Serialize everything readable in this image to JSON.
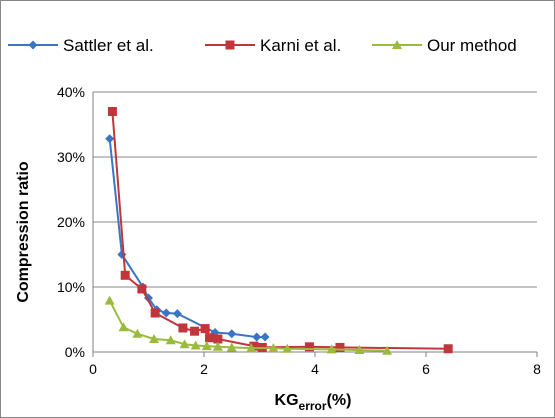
{
  "chart_data": {
    "type": "line",
    "xlabel_main": "KG",
    "xlabel_sub": "error",
    "xlabel_suffix": "(%)",
    "ylabel": "Compression ratio",
    "xlim": [
      0,
      8
    ],
    "ylim": [
      0,
      40
    ],
    "x_ticks": [
      "0",
      "2",
      "4",
      "6",
      "8"
    ],
    "y_ticks": [
      "0%",
      "10%",
      "20%",
      "30%",
      "40%"
    ],
    "grid": "horizontal",
    "legend_position": "top",
    "series": [
      {
        "name": "Sattler et al.",
        "color": "#3a75c4",
        "marker": "diamond",
        "points": [
          [
            0.3,
            32.8
          ],
          [
            0.52,
            15.0
          ],
          [
            0.9,
            10.0
          ],
          [
            1.0,
            8.3
          ],
          [
            1.15,
            6.5
          ],
          [
            1.32,
            6.0
          ],
          [
            1.52,
            5.9
          ],
          [
            2.2,
            3.0
          ],
          [
            2.5,
            2.8
          ],
          [
            2.95,
            2.3
          ],
          [
            3.1,
            2.3
          ]
        ]
      },
      {
        "name": "Karni et al.",
        "color": "#c0363a",
        "marker": "square",
        "points": [
          [
            0.35,
            37.0
          ],
          [
            0.58,
            11.8
          ],
          [
            0.88,
            9.7
          ],
          [
            1.12,
            6.0
          ],
          [
            1.62,
            3.7
          ],
          [
            1.83,
            3.2
          ],
          [
            2.02,
            3.6
          ],
          [
            2.1,
            2.2
          ],
          [
            2.25,
            2.0
          ],
          [
            2.9,
            0.9
          ],
          [
            3.05,
            0.7
          ],
          [
            3.9,
            0.8
          ],
          [
            4.45,
            0.7
          ],
          [
            6.4,
            0.5
          ]
        ]
      },
      {
        "name": "Our method",
        "color": "#9bbb3e",
        "marker": "triangle",
        "points": [
          [
            0.3,
            7.9
          ],
          [
            0.55,
            3.8
          ],
          [
            0.8,
            2.8
          ],
          [
            1.1,
            2.0
          ],
          [
            1.4,
            1.8
          ],
          [
            1.65,
            1.2
          ],
          [
            1.85,
            1.0
          ],
          [
            2.05,
            0.9
          ],
          [
            2.25,
            0.8
          ],
          [
            2.5,
            0.7
          ],
          [
            2.85,
            0.6
          ],
          [
            3.25,
            0.6
          ],
          [
            3.5,
            0.5
          ],
          [
            4.3,
            0.4
          ],
          [
            4.8,
            0.3
          ],
          [
            5.3,
            0.2
          ]
        ]
      }
    ]
  }
}
